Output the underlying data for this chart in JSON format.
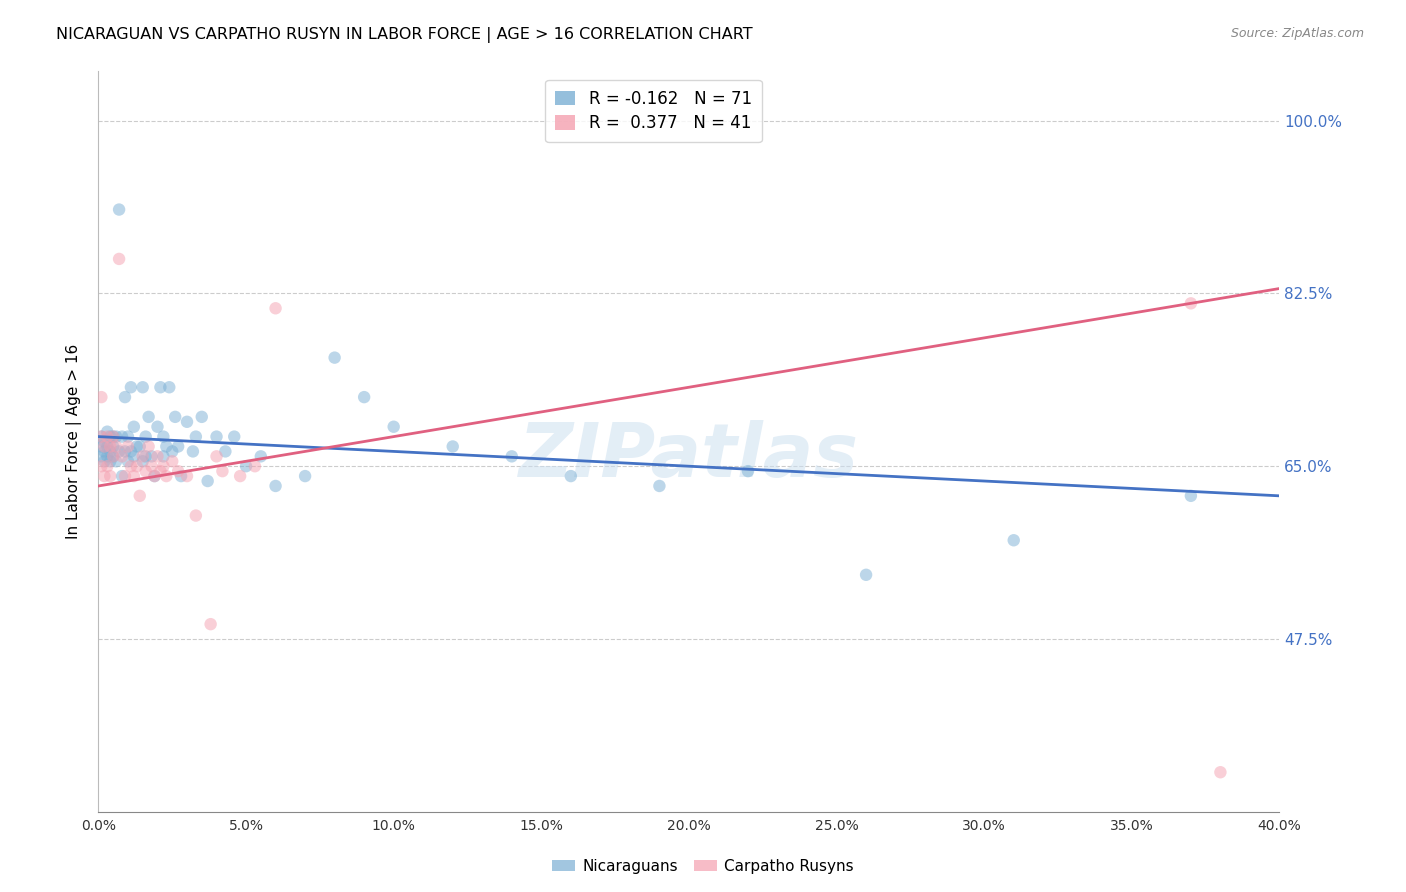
{
  "title": "NICARAGUAN VS CARPATHO RUSYN IN LABOR FORCE | AGE > 16 CORRELATION CHART",
  "source_text": "Source: ZipAtlas.com",
  "ylabel": "In Labor Force | Age > 16",
  "xlim": [
    0.0,
    0.4
  ],
  "ylim": [
    0.3,
    1.05
  ],
  "xtick_labels": [
    "0.0%",
    "5.0%",
    "10.0%",
    "15.0%",
    "20.0%",
    "25.0%",
    "30.0%",
    "35.0%",
    "40.0%"
  ],
  "xtick_values": [
    0.0,
    0.05,
    0.1,
    0.15,
    0.2,
    0.25,
    0.3,
    0.35,
    0.4
  ],
  "ytick_labels": [
    "100.0%",
    "82.5%",
    "65.0%",
    "47.5%"
  ],
  "ytick_values": [
    1.0,
    0.825,
    0.65,
    0.475
  ],
  "ytick_color": "#4472c4",
  "grid_color": "#cccccc",
  "background_color": "#ffffff",
  "watermark": "ZIPatlas",
  "legend_r_blue": "-0.162",
  "legend_n_blue": "71",
  "legend_r_pink": "0.377",
  "legend_n_pink": "41",
  "blue_color": "#7bafd4",
  "pink_color": "#f4a0b0",
  "blue_line_color": "#4472c4",
  "pink_line_color": "#e06080",
  "marker_size": 80,
  "marker_alpha": 0.5,
  "blue_scatter_x": [
    0.001,
    0.001,
    0.001,
    0.002,
    0.002,
    0.002,
    0.003,
    0.003,
    0.003,
    0.004,
    0.004,
    0.004,
    0.005,
    0.005,
    0.005,
    0.006,
    0.006,
    0.007,
    0.007,
    0.008,
    0.008,
    0.009,
    0.009,
    0.01,
    0.01,
    0.011,
    0.011,
    0.012,
    0.012,
    0.013,
    0.014,
    0.015,
    0.015,
    0.016,
    0.016,
    0.017,
    0.018,
    0.019,
    0.02,
    0.021,
    0.022,
    0.022,
    0.023,
    0.024,
    0.025,
    0.026,
    0.027,
    0.028,
    0.03,
    0.032,
    0.033,
    0.035,
    0.037,
    0.04,
    0.043,
    0.046,
    0.05,
    0.055,
    0.06,
    0.07,
    0.08,
    0.09,
    0.1,
    0.12,
    0.14,
    0.16,
    0.19,
    0.22,
    0.26,
    0.31,
    0.37
  ],
  "blue_scatter_y": [
    0.67,
    0.66,
    0.68,
    0.665,
    0.675,
    0.655,
    0.685,
    0.66,
    0.67,
    0.665,
    0.68,
    0.655,
    0.67,
    0.68,
    0.66,
    0.68,
    0.655,
    0.91,
    0.665,
    0.68,
    0.64,
    0.72,
    0.665,
    0.68,
    0.655,
    0.73,
    0.665,
    0.69,
    0.66,
    0.67,
    0.67,
    0.73,
    0.655,
    0.68,
    0.66,
    0.7,
    0.66,
    0.64,
    0.69,
    0.73,
    0.66,
    0.68,
    0.67,
    0.73,
    0.665,
    0.7,
    0.67,
    0.64,
    0.695,
    0.665,
    0.68,
    0.7,
    0.635,
    0.68,
    0.665,
    0.68,
    0.65,
    0.66,
    0.63,
    0.64,
    0.76,
    0.72,
    0.69,
    0.67,
    0.66,
    0.64,
    0.63,
    0.645,
    0.54,
    0.575,
    0.62
  ],
  "pink_scatter_x": [
    0.001,
    0.001,
    0.001,
    0.002,
    0.002,
    0.003,
    0.003,
    0.004,
    0.004,
    0.005,
    0.005,
    0.006,
    0.007,
    0.008,
    0.009,
    0.01,
    0.011,
    0.012,
    0.013,
    0.014,
    0.015,
    0.016,
    0.017,
    0.018,
    0.019,
    0.02,
    0.021,
    0.022,
    0.023,
    0.025,
    0.027,
    0.03,
    0.033,
    0.038,
    0.04,
    0.042,
    0.048,
    0.053,
    0.06,
    0.37,
    0.38
  ],
  "pink_scatter_y": [
    0.72,
    0.68,
    0.65,
    0.67,
    0.64,
    0.68,
    0.65,
    0.67,
    0.64,
    0.68,
    0.66,
    0.67,
    0.86,
    0.66,
    0.64,
    0.67,
    0.65,
    0.64,
    0.65,
    0.62,
    0.66,
    0.645,
    0.67,
    0.65,
    0.64,
    0.66,
    0.645,
    0.65,
    0.64,
    0.655,
    0.645,
    0.64,
    0.6,
    0.49,
    0.66,
    0.645,
    0.64,
    0.65,
    0.81,
    0.815,
    0.34
  ],
  "blue_trendline_x": [
    0.0,
    0.4
  ],
  "blue_trendline_y": [
    0.68,
    0.62
  ],
  "pink_trendline_x": [
    0.0,
    0.4
  ],
  "pink_trendline_y": [
    0.63,
    0.83
  ]
}
